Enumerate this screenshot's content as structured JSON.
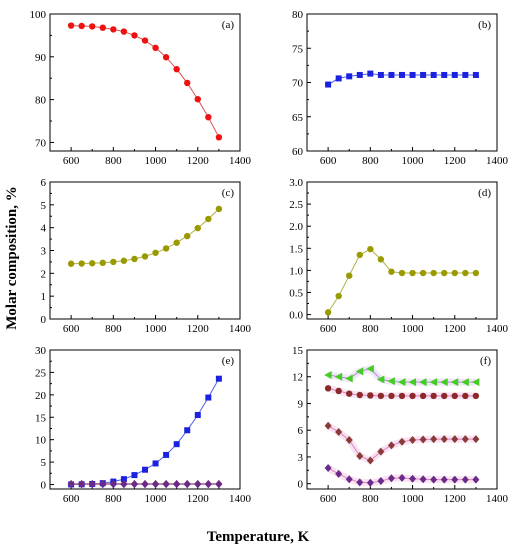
{
  "figure": {
    "ylabel": "Molar composition, %",
    "xlabel": "Temperature, K"
  },
  "chart_data": [
    {
      "panel": "(a)",
      "type": "line",
      "xlim": [
        500,
        1400
      ],
      "ylim": [
        68,
        100
      ],
      "xticks": [
        600,
        800,
        1000,
        1200,
        1400
      ],
      "yticks": [
        70,
        80,
        90,
        100
      ],
      "series": [
        {
          "color": "#ee1111",
          "marker": "circle",
          "line": "#e05050",
          "x": [
            600,
            650,
            700,
            750,
            800,
            850,
            900,
            950,
            1000,
            1050,
            1100,
            1150,
            1200,
            1250,
            1300
          ],
          "y": [
            97.3,
            97.2,
            97.1,
            96.8,
            96.4,
            95.9,
            95.0,
            93.8,
            92.1,
            89.9,
            87.1,
            83.9,
            80.1,
            75.9,
            71.2
          ]
        }
      ]
    },
    {
      "panel": "(b)",
      "type": "line",
      "xlim": [
        500,
        1400
      ],
      "ylim": [
        60,
        80
      ],
      "xticks": [
        600,
        800,
        1000,
        1200,
        1400
      ],
      "yticks": [
        60,
        65,
        70,
        75,
        80
      ],
      "series": [
        {
          "color": "#1a22e0",
          "marker": "square",
          "line": "#5060e8",
          "x": [
            600,
            650,
            700,
            750,
            800,
            850,
            900,
            950,
            1000,
            1050,
            1100,
            1150,
            1200,
            1250,
            1300
          ],
          "y": [
            69.7,
            70.6,
            70.9,
            71.1,
            71.3,
            71.1,
            71.1,
            71.1,
            71.1,
            71.1,
            71.1,
            71.1,
            71.1,
            71.1,
            71.1
          ]
        }
      ]
    },
    {
      "panel": "(c)",
      "type": "line",
      "xlim": [
        500,
        1400
      ],
      "ylim": [
        0,
        6
      ],
      "xticks": [
        600,
        800,
        1000,
        1200,
        1400
      ],
      "yticks": [
        0,
        1,
        2,
        3,
        4,
        5,
        6
      ],
      "series": [
        {
          "color": "#999900",
          "marker": "circle",
          "line": "#b0b040",
          "x": [
            600,
            650,
            700,
            750,
            800,
            850,
            900,
            950,
            1000,
            1050,
            1100,
            1150,
            1200,
            1250,
            1300
          ],
          "y": [
            2.42,
            2.43,
            2.44,
            2.46,
            2.5,
            2.55,
            2.63,
            2.74,
            2.9,
            3.09,
            3.34,
            3.63,
            3.98,
            4.38,
            4.82
          ]
        }
      ]
    },
    {
      "panel": "(d)",
      "type": "line",
      "xlim": [
        500,
        1400
      ],
      "ylim": [
        -0.1,
        3.0
      ],
      "xticks": [
        600,
        800,
        1000,
        1200,
        1400
      ],
      "yticks": [
        0.0,
        0.5,
        1.0,
        1.5,
        2.0,
        2.5,
        3.0
      ],
      "series": [
        {
          "color": "#999900",
          "marker": "circle",
          "line": "#b0b040",
          "x": [
            600,
            650,
            700,
            750,
            800,
            850,
            900,
            950,
            1000,
            1050,
            1100,
            1150,
            1200,
            1250,
            1300
          ],
          "y": [
            0.05,
            0.42,
            0.88,
            1.35,
            1.48,
            1.25,
            0.97,
            0.94,
            0.94,
            0.94,
            0.94,
            0.94,
            0.94,
            0.94,
            0.94
          ]
        }
      ]
    },
    {
      "panel": "(e)",
      "type": "line",
      "xlim": [
        500,
        1400
      ],
      "ylim": [
        -1,
        30
      ],
      "xticks": [
        600,
        800,
        1000,
        1200,
        1400
      ],
      "yticks": [
        0,
        5,
        10,
        15,
        20,
        25,
        30
      ],
      "series": [
        {
          "color": "#1a22e0",
          "marker": "square",
          "line": "#5060e8",
          "x": [
            600,
            650,
            700,
            750,
            800,
            850,
            900,
            950,
            1000,
            1050,
            1100,
            1150,
            1200,
            1250,
            1300
          ],
          "y": [
            0.02,
            0.05,
            0.12,
            0.3,
            0.65,
            1.2,
            2.1,
            3.3,
            4.7,
            6.6,
            9.0,
            12.1,
            15.5,
            19.4,
            23.6
          ]
        },
        {
          "color": "#8b3a3a",
          "marker": "diamond",
          "line": "#c06060",
          "x": [
            600,
            650,
            700,
            750,
            800,
            850,
            900,
            950,
            1000,
            1050,
            1100,
            1150,
            1200,
            1250,
            1300
          ],
          "y": [
            0.15,
            0.15,
            0.15,
            0.15,
            0.15,
            0.15,
            0.15,
            0.15,
            0.15,
            0.15,
            0.15,
            0.15,
            0.15,
            0.15,
            0.15
          ]
        },
        {
          "color": "#6a2a8a",
          "marker": "diamond",
          "line": "#9060b0",
          "x": [
            600,
            650,
            700,
            750,
            800,
            850,
            900,
            950,
            1000,
            1050,
            1100,
            1150,
            1200,
            1250,
            1300
          ],
          "y": [
            0.05,
            0.05,
            0.05,
            0.05,
            0.05,
            0.05,
            0.05,
            0.05,
            0.05,
            0.05,
            0.05,
            0.05,
            0.05,
            0.05,
            0.05
          ]
        }
      ]
    },
    {
      "panel": "(f)",
      "type": "line",
      "xlim": [
        500,
        1400
      ],
      "ylim": [
        -0.6,
        15
      ],
      "xticks": [
        600,
        800,
        1000,
        1200,
        1400
      ],
      "yticks": [
        0,
        3,
        6,
        9,
        12,
        15
      ],
      "series": [
        {
          "color": "#44cc22",
          "marker": "triangle-left",
          "line": "#b090d8",
          "x": [
            600,
            650,
            700,
            750,
            800,
            850,
            900,
            950,
            1000,
            1050,
            1100,
            1150,
            1200,
            1250,
            1300
          ],
          "y": [
            12.2,
            12.0,
            11.8,
            12.6,
            12.9,
            11.7,
            11.5,
            11.4,
            11.4,
            11.4,
            11.4,
            11.4,
            11.4,
            11.4,
            11.4
          ]
        },
        {
          "color": "#8b2a2a",
          "marker": "circle",
          "line": "#e080c0",
          "x": [
            600,
            650,
            700,
            750,
            800,
            850,
            900,
            950,
            1000,
            1050,
            1100,
            1150,
            1200,
            1250,
            1300
          ],
          "y": [
            10.7,
            10.4,
            10.1,
            9.95,
            9.9,
            9.85,
            9.85,
            9.85,
            9.85,
            9.85,
            9.85,
            9.85,
            9.85,
            9.85,
            9.85
          ]
        },
        {
          "color": "#8b3a3a",
          "marker": "diamond",
          "line": "#e080c0",
          "x": [
            600,
            650,
            700,
            750,
            800,
            850,
            900,
            950,
            1000,
            1050,
            1100,
            1150,
            1200,
            1250,
            1300
          ],
          "y": [
            6.5,
            5.8,
            4.9,
            3.1,
            2.6,
            3.6,
            4.3,
            4.7,
            4.9,
            4.95,
            5.0,
            5.0,
            5.0,
            5.0,
            5.0
          ]
        },
        {
          "color": "#6a2a8a",
          "marker": "diamond",
          "line": "#e080c0",
          "x": [
            600,
            650,
            700,
            750,
            800,
            850,
            900,
            950,
            1000,
            1050,
            1100,
            1150,
            1200,
            1250,
            1300
          ],
          "y": [
            1.75,
            1.1,
            0.5,
            0.15,
            0.1,
            0.3,
            0.6,
            0.65,
            0.55,
            0.5,
            0.45,
            0.45,
            0.45,
            0.45,
            0.45
          ]
        }
      ]
    }
  ]
}
